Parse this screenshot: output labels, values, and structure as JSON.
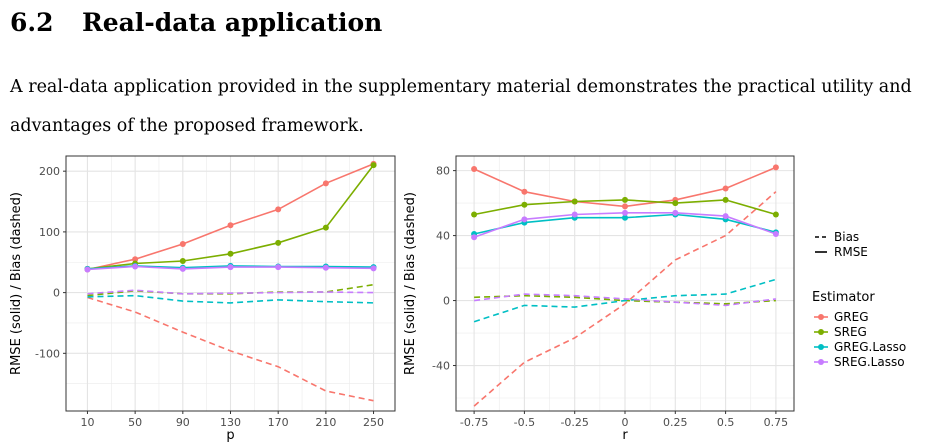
{
  "section": {
    "number": "6.2",
    "title": "Real-data application",
    "body": "A real-data application provided in the supplementary material demonstrates the practical utility and advantages of the proposed framework."
  },
  "legend": {
    "linetype_items": [
      "Bias",
      "RMSE"
    ],
    "estimator_title": "Estimator",
    "estimators": [
      "GREG",
      "SREG",
      "GREG.Lasso",
      "SREG.Lasso"
    ],
    "colors": [
      "#F8766D",
      "#7CAE00",
      "#00BFC4",
      "#C77CFF"
    ]
  },
  "chart_data": [
    {
      "type": "line",
      "xlabel": "p",
      "ylabel": "RMSE (solid) / Bias (dashed)",
      "x": [
        10,
        50,
        90,
        130,
        170,
        210,
        250
      ],
      "x_ticks": [
        "10",
        "50",
        "90",
        "130",
        "170",
        "210",
        "250"
      ],
      "y_ticks": [
        -100,
        0,
        100,
        200
      ],
      "xlim": [
        -8,
        268
      ],
      "ylim": [
        -195,
        225
      ],
      "grid": true,
      "series": [
        {
          "name": "GREG",
          "metric": "RMSE",
          "values": [
            38,
            55,
            80,
            111,
            137,
            180,
            212
          ]
        },
        {
          "name": "SREG",
          "metric": "RMSE",
          "values": [
            39,
            48,
            52,
            64,
            82,
            107,
            210
          ]
        },
        {
          "name": "GREG.Lasso",
          "metric": "RMSE",
          "values": [
            39,
            44,
            41,
            44,
            43,
            43,
            42
          ]
        },
        {
          "name": "SREG.Lasso",
          "metric": "RMSE",
          "values": [
            38,
            43,
            39,
            42,
            42,
            41,
            40
          ]
        },
        {
          "name": "GREG",
          "metric": "Bias",
          "values": [
            -8,
            -32,
            -65,
            -96,
            -122,
            -162,
            -178
          ]
        },
        {
          "name": "SREG",
          "metric": "Bias",
          "values": [
            -5,
            3,
            -2,
            -2,
            1,
            1,
            13
          ]
        },
        {
          "name": "GREG.Lasso",
          "metric": "Bias",
          "values": [
            -7,
            -5,
            -14,
            -17,
            -12,
            -15,
            -17
          ]
        },
        {
          "name": "SREG.Lasso",
          "metric": "Bias",
          "values": [
            -2,
            4,
            -2,
            -1,
            0,
            1,
            0
          ]
        }
      ]
    },
    {
      "type": "line",
      "xlabel": "r",
      "ylabel": "RMSE (solid) / Bias (dashed)",
      "x": [
        -0.75,
        -0.5,
        -0.25,
        0,
        0.25,
        0.5,
        0.75
      ],
      "x_ticks": [
        "-0.75",
        "-0.5",
        "-0.25",
        "0",
        "0.25",
        "0.5",
        "0.75"
      ],
      "y_ticks": [
        -40,
        0,
        40,
        80
      ],
      "xlim": [
        -0.84,
        0.84
      ],
      "ylim": [
        -68,
        89
      ],
      "grid": true,
      "series": [
        {
          "name": "GREG",
          "metric": "RMSE",
          "values": [
            81,
            67,
            61,
            58,
            62,
            69,
            82
          ]
        },
        {
          "name": "SREG",
          "metric": "RMSE",
          "values": [
            53,
            59,
            61,
            62,
            60,
            62,
            53
          ]
        },
        {
          "name": "GREG.Lasso",
          "metric": "RMSE",
          "values": [
            41,
            48,
            51,
            51,
            53,
            50,
            42
          ]
        },
        {
          "name": "SREG.Lasso",
          "metric": "RMSE",
          "values": [
            39,
            50,
            53,
            54,
            54,
            52,
            41
          ]
        },
        {
          "name": "GREG",
          "metric": "Bias",
          "values": [
            -65,
            -38,
            -23,
            -2,
            25,
            40,
            67
          ]
        },
        {
          "name": "SREG",
          "metric": "Bias",
          "values": [
            2,
            3,
            2,
            0,
            -1,
            -2,
            0
          ]
        },
        {
          "name": "GREG.Lasso",
          "metric": "Bias",
          "values": [
            -13,
            -3,
            -4,
            0,
            3,
            4,
            13
          ]
        },
        {
          "name": "SREG.Lasso",
          "metric": "Bias",
          "values": [
            0,
            4,
            3,
            1,
            -1,
            -3,
            1
          ]
        }
      ]
    }
  ]
}
